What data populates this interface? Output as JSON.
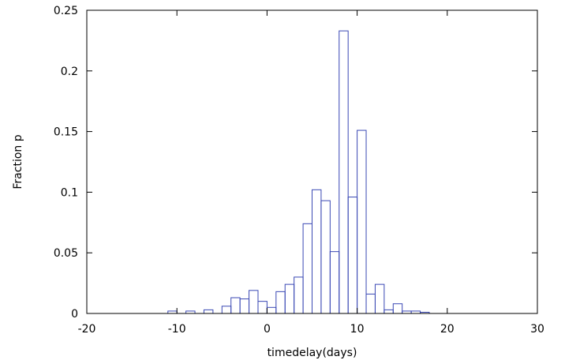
{
  "chart_data": {
    "type": "bar",
    "title": "",
    "xlabel": "timedelay(days)",
    "ylabel": "Fraction p",
    "xlim": [
      -20,
      30
    ],
    "ylim": [
      0,
      0.25
    ],
    "xticks": [
      -20,
      -10,
      0,
      10,
      20,
      30
    ],
    "xtick_labels": [
      "-20",
      "-10",
      "0",
      "10",
      "20",
      "30"
    ],
    "yticks": [
      0,
      0.05,
      0.1,
      0.15,
      0.2,
      0.25
    ],
    "ytick_labels": [
      "0",
      "0.05",
      "0.1",
      "0.15",
      "0.2",
      "0.25"
    ],
    "bin_width": 1,
    "grid": false,
    "colors": {
      "bars": "#3a48b4",
      "frame": "#000000"
    },
    "bins": [
      {
        "x": -10.5,
        "value": 0.002
      },
      {
        "x": -8.5,
        "value": 0.002
      },
      {
        "x": -6.5,
        "value": 0.003
      },
      {
        "x": -4.5,
        "value": 0.006
      },
      {
        "x": -3.5,
        "value": 0.013
      },
      {
        "x": -2.5,
        "value": 0.012
      },
      {
        "x": -1.5,
        "value": 0.019
      },
      {
        "x": -0.5,
        "value": 0.01
      },
      {
        "x": 0.5,
        "value": 0.005
      },
      {
        "x": 1.5,
        "value": 0.018
      },
      {
        "x": 2.5,
        "value": 0.024
      },
      {
        "x": 3.5,
        "value": 0.03
      },
      {
        "x": 4.5,
        "value": 0.074
      },
      {
        "x": 5.5,
        "value": 0.102
      },
      {
        "x": 6.5,
        "value": 0.093
      },
      {
        "x": 7.5,
        "value": 0.051
      },
      {
        "x": 8.5,
        "value": 0.233
      },
      {
        "x": 9.5,
        "value": 0.096
      },
      {
        "x": 10.5,
        "value": 0.151
      },
      {
        "x": 11.5,
        "value": 0.016
      },
      {
        "x": 12.5,
        "value": 0.024
      },
      {
        "x": 13.5,
        "value": 0.003
      },
      {
        "x": 14.5,
        "value": 0.008
      },
      {
        "x": 15.5,
        "value": 0.002
      },
      {
        "x": 16.5,
        "value": 0.002
      },
      {
        "x": 17.5,
        "value": 0.001
      }
    ]
  }
}
